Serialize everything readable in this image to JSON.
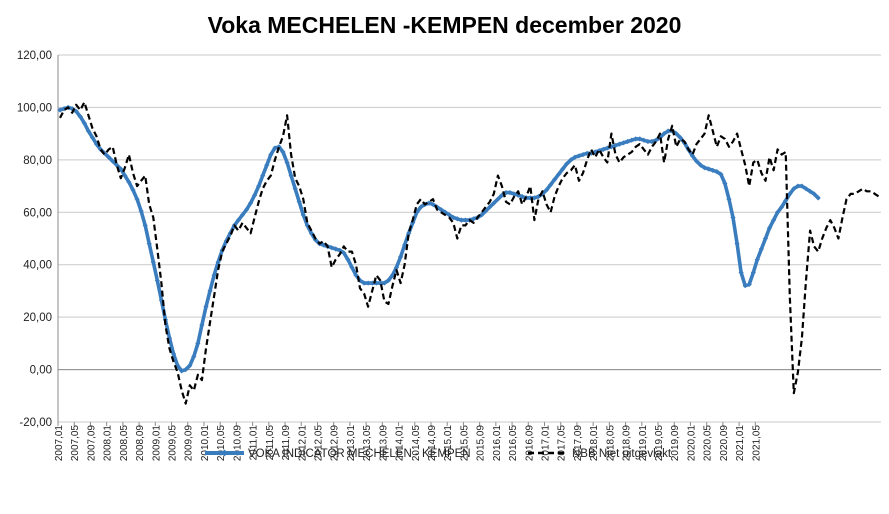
{
  "chart_data": {
    "type": "line",
    "title": "Voka MECHELEN -KEMPEN   december 2020",
    "ylim": [
      -20,
      120
    ],
    "yticks": [
      "-20,00",
      "0,00",
      "20,00",
      "40,00",
      "60,00",
      "80,00",
      "100,00",
      "120,00"
    ],
    "ytick_values": [
      -20,
      0,
      20,
      40,
      60,
      80,
      100,
      120
    ],
    "grid": "horizontal",
    "legend_position": "bottom",
    "x_start": "2007,01",
    "x_tick_step_months": 4,
    "xticks": [
      "2007,01",
      "2007,05",
      "2007,09",
      "2008,01",
      "2008,05",
      "2008,09",
      "2009,01",
      "2009,05",
      "2009,09",
      "2010,01",
      "2010,05",
      "2010,09",
      "2011,01",
      "2011,05",
      "2011,09",
      "2012,01",
      "2012,05",
      "2012,09",
      "2013,01",
      "2013,05",
      "2013,09",
      "2014,01",
      "2014,05",
      "2014,09",
      "2015,01",
      "2015,05",
      "2015,09",
      "2016,01",
      "2016,05",
      "2016,09",
      "2017,01",
      "2017,05",
      "2017,09",
      "2018,01",
      "2018,05",
      "2018,09",
      "2019,01",
      "2019,05",
      "2019,09",
      "2020,01",
      "2020,05",
      "2020,09",
      "2021,01",
      "2021,05"
    ],
    "series": [
      {
        "name": "VOKA INDICATOR MECHELEN - KEMPEN",
        "color": "#3a7dbf",
        "style": "solid-marker",
        "values": [
          99,
          99.5,
          100,
          99.5,
          98.5,
          96.5,
          94,
          91,
          88.5,
          86,
          84,
          82.5,
          81,
          79.5,
          78,
          76.5,
          74,
          71.5,
          68.5,
          65,
          60.5,
          55,
          48,
          41,
          34,
          26.5,
          19,
          12,
          6,
          1.5,
          -0.5,
          0,
          1.5,
          5,
          10,
          17,
          24,
          30,
          36,
          41,
          45.5,
          49,
          52,
          55,
          57,
          59,
          61,
          63.5,
          66.5,
          70,
          74,
          78,
          82,
          84.5,
          85,
          83,
          79,
          74,
          69,
          64,
          59,
          55,
          52,
          49.5,
          48,
          47.5,
          47,
          46.5,
          46,
          45.5,
          44.5,
          42,
          39,
          36,
          34,
          33,
          33,
          33,
          33,
          33,
          33,
          34,
          36,
          39,
          43,
          47.5,
          52,
          56,
          60,
          62,
          63,
          63.5,
          63,
          62,
          61,
          60,
          59,
          58,
          57.5,
          57,
          57,
          57,
          57.5,
          58,
          59,
          60.5,
          62,
          63.5,
          65,
          66.5,
          67.5,
          67.5,
          67,
          66.5,
          66,
          65.5,
          65.5,
          65.5,
          66,
          67,
          68.5,
          70.5,
          72.5,
          74.5,
          76.5,
          78.5,
          80,
          81,
          81.5,
          82,
          82.5,
          82.5,
          83,
          83.5,
          84,
          84.5,
          85,
          85.5,
          86,
          86.5,
          87,
          87.5,
          88,
          88,
          87.5,
          87,
          87,
          87.5,
          88.5,
          90,
          91,
          91,
          90,
          88.5,
          86.5,
          84,
          81.5,
          79.5,
          78,
          77,
          76.5,
          76,
          75.5,
          74.5,
          71,
          65,
          58,
          48,
          37,
          32,
          32.5,
          37,
          42,
          46,
          50,
          54,
          57,
          60,
          62,
          64.5,
          67,
          69,
          70,
          70,
          69,
          68,
          67,
          65.5
        ]
      },
      {
        "name": "NBB Niet uitgevlakt",
        "color": "#000000",
        "style": "dashed",
        "values": [
          96,
          99,
          100,
          98,
          101,
          99,
          102,
          97,
          92,
          89,
          84,
          82,
          84,
          85,
          78,
          73,
          77,
          82,
          75,
          70,
          72,
          74,
          63,
          58,
          46,
          33,
          17,
          8,
          3,
          -1,
          -8,
          -13,
          -6,
          -8,
          -2,
          -4,
          8,
          18,
          28,
          38,
          45,
          48,
          51,
          55,
          53,
          56,
          54,
          52,
          58,
          64,
          69,
          72,
          74,
          80,
          85,
          89,
          97,
          82,
          73,
          70,
          65,
          56,
          53,
          50,
          48,
          49,
          47,
          39,
          42,
          44,
          47,
          45,
          45,
          40,
          31,
          29,
          24,
          30,
          36,
          34,
          26,
          25,
          32,
          38,
          33,
          40,
          52,
          57,
          63,
          65,
          63,
          64,
          65,
          61,
          60,
          59,
          58,
          56,
          50,
          55,
          55,
          57,
          56,
          58,
          60,
          62,
          64,
          67,
          74,
          70,
          64,
          63,
          66,
          68,
          63,
          66,
          70,
          57,
          65,
          68,
          63,
          60,
          66,
          70,
          73,
          75,
          76,
          78,
          72,
          75,
          80,
          84,
          81,
          84,
          81,
          79,
          90,
          82,
          79,
          81,
          82,
          83,
          85,
          86,
          84,
          82,
          85,
          87,
          90,
          79,
          88,
          93,
          85,
          88,
          87,
          84,
          82,
          86,
          88,
          90,
          97,
          91,
          85,
          89,
          88,
          85,
          87,
          90,
          84,
          78,
          70,
          79,
          80,
          75,
          72,
          81,
          76,
          84,
          82,
          83,
          28,
          -9,
          -1,
          12,
          34,
          53,
          47,
          45,
          50,
          54,
          57,
          54,
          50,
          58,
          65,
          67,
          67,
          68,
          69,
          68,
          68,
          67,
          66
        ]
      }
    ]
  }
}
